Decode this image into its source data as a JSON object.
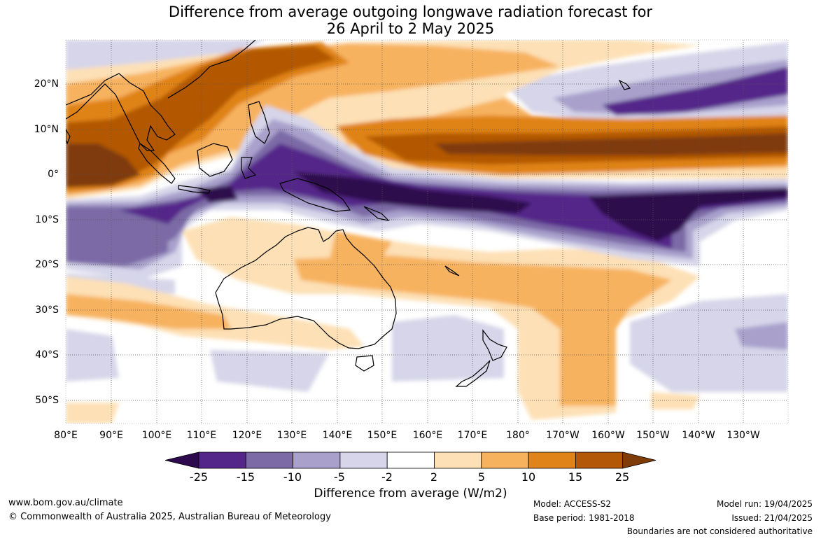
{
  "title": {
    "line1": "Difference from average outgoing longwave radiation forecast for",
    "line2": "26 April to 2 May 2025"
  },
  "map": {
    "region": "Indo-Pacific, 80°E to 120°W, 30°N to 55°S",
    "lat_labels": [
      "20°N",
      "10°N",
      "0°",
      "10°S",
      "20°S",
      "30°S",
      "40°S",
      "50°S"
    ],
    "lon_labels": [
      "80°E",
      "90°E",
      "100°E",
      "110°E",
      "120°E",
      "130°E",
      "140°E",
      "150°E",
      "160°E",
      "170°E",
      "180°",
      "170°W",
      "160°W",
      "150°W",
      "140°W",
      "130°W"
    ]
  },
  "colorbar": {
    "ticks": [
      "-25",
      "-15",
      "-10",
      "-5",
      "-2",
      "2",
      "5",
      "10",
      "15",
      "25"
    ],
    "colors": [
      "#2d0a4e",
      "#55268a",
      "#7b6aa6",
      "#a9a1cc",
      "#d6d5e9",
      "#ffffff",
      "#fde0b5",
      "#f7b25e",
      "#e08319",
      "#b35806",
      "#7f3b08"
    ],
    "label": "Difference from average (W/m2)"
  },
  "footer": {
    "url": "www.bom.gov.au/climate",
    "copyright": "© Commonwealth of Australia 2025, Australian Bureau of Meteorology",
    "model": "Model: ACCESS-S2",
    "base_period": "Base period: 1981-2018",
    "model_run": "Model run: 19/04/2025",
    "issued": "Issued: 21/04/2025",
    "disclaimer": "Boundaries are not considered authoritative"
  }
}
